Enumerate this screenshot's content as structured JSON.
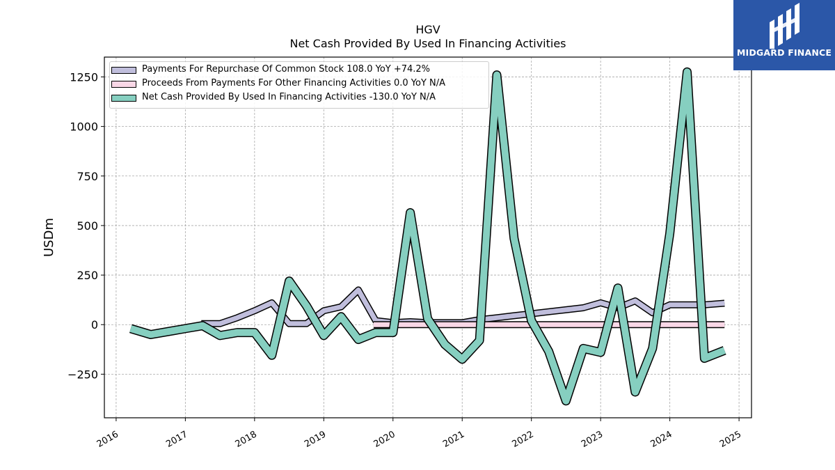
{
  "header": {
    "ticker": "HGV",
    "subtitle": "Net Cash Provided By Used In Financing Activities"
  },
  "logo": {
    "brand": "MIDGARD FINANCE",
    "icon": "midgard-m-logo-icon",
    "background": "#2b57a8"
  },
  "legend": {
    "items": [
      {
        "label": "Payments For Repurchase Of Common Stock  108.0 YoY +74.2%",
        "color": "#c0bedc"
      },
      {
        "label": "Proceeds From Payments For Other Financing Activities  0.0 YoY N/A",
        "color": "#f9d7e6"
      },
      {
        "label": "Net Cash Provided By Used In Financing Activities  -130.0 YoY N/A",
        "color": "#86cfc0"
      }
    ]
  },
  "chart_data": {
    "type": "line",
    "ylabel": "USDm",
    "xlim": [
      2015.83,
      2025.18
    ],
    "ylim": [
      -470,
      1350
    ],
    "yticks": [
      -250,
      0,
      250,
      500,
      750,
      1000,
      1250
    ],
    "yticklabels": [
      "−250",
      "0",
      "250",
      "500",
      "750",
      "1000",
      "1250"
    ],
    "xticks": [
      2016,
      2017,
      2018,
      2019,
      2020,
      2021,
      2022,
      2023,
      2024,
      2025
    ],
    "xticklabels": [
      "2016",
      "2017",
      "2018",
      "2019",
      "2020",
      "2021",
      "2022",
      "2023",
      "2024",
      "2025"
    ],
    "grid": true,
    "legend_position": "top-left",
    "series": [
      {
        "name": "Payments For Repurchase Of Common Stock",
        "color": "#c0bedc",
        "width": 7,
        "x": [
          2017.23,
          2017.5,
          2017.75,
          2018.0,
          2018.25,
          2018.5,
          2018.75,
          2019.0,
          2019.25,
          2019.5,
          2019.75,
          2020.0,
          2020.25,
          2020.5,
          2020.75,
          2021.0,
          2021.25,
          2021.5,
          2021.75,
          2022.0,
          2022.25,
          2022.5,
          2022.75,
          2023.0,
          2023.25,
          2023.5,
          2023.75,
          2024.0,
          2024.25,
          2024.5,
          2024.79
        ],
        "y": [
          5,
          5,
          35,
          70,
          110,
          5,
          5,
          70,
          90,
          175,
          20,
          10,
          15,
          10,
          10,
          10,
          25,
          35,
          45,
          55,
          65,
          75,
          85,
          110,
          85,
          120,
          60,
          100,
          100,
          100,
          108
        ]
      },
      {
        "name": "Proceeds From Payments For Other Financing Activities",
        "color": "#f9d7e6",
        "width": 7,
        "x": [
          2019.72,
          2020.0,
          2020.25,
          2020.5,
          2020.75,
          2021.0,
          2021.25,
          2021.5,
          2021.75,
          2022.0,
          2022.25,
          2022.5,
          2022.75,
          2023.0,
          2023.25,
          2023.5,
          2023.75,
          2024.0,
          2024.25,
          2024.5,
          2024.79
        ],
        "y": [
          0,
          0,
          0,
          0,
          0,
          0,
          0,
          0,
          0,
          0,
          0,
          0,
          0,
          0,
          0,
          0,
          0,
          0,
          0,
          0,
          0
        ]
      },
      {
        "name": "Net Cash Provided By Used In Financing Activities",
        "color": "#86cfc0",
        "width": 10,
        "x": [
          2016.21,
          2016.5,
          2016.75,
          2017.0,
          2017.25,
          2017.5,
          2017.75,
          2018.0,
          2018.25,
          2018.5,
          2018.75,
          2019.0,
          2019.25,
          2019.5,
          2019.75,
          2020.0,
          2020.25,
          2020.5,
          2020.75,
          2021.0,
          2021.25,
          2021.5,
          2021.75,
          2022.0,
          2022.25,
          2022.5,
          2022.75,
          2023.0,
          2023.25,
          2023.5,
          2023.75,
          2024.0,
          2024.25,
          2024.5,
          2024.79
        ],
        "y": [
          -20,
          -50,
          -35,
          -20,
          -5,
          -55,
          -40,
          -40,
          -155,
          220,
          95,
          -55,
          40,
          -75,
          -40,
          -40,
          565,
          30,
          -100,
          -175,
          -80,
          1260,
          435,
          20,
          -135,
          -385,
          -120,
          -140,
          185,
          -340,
          -120,
          460,
          1275,
          -170,
          -130
        ]
      }
    ]
  }
}
